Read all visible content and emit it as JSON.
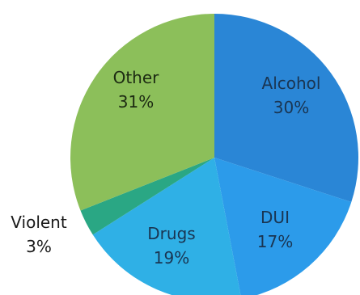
{
  "chart_data": {
    "type": "pie",
    "slices": [
      {
        "label": "Alcohol",
        "value": 30,
        "value_text": "30%",
        "color": "#2a86d6",
        "label_color": "#1a3552"
      },
      {
        "label": "DUI",
        "value": 17,
        "value_text": "17%",
        "color": "#2c9bea",
        "label_color": "#1a3552"
      },
      {
        "label": "Drugs",
        "value": 19,
        "value_text": "19%",
        "color": "#2fb0e6",
        "label_color": "#1a3552"
      },
      {
        "label": "Violent",
        "value": 3,
        "value_text": "3%",
        "color": "#2aa784",
        "label_color": "#1a1a1a"
      },
      {
        "label": "Other",
        "value": 31,
        "value_text": "31%",
        "color": "#8cbf5a",
        "label_color": "#1c2a12"
      }
    ],
    "start_angle_deg": 0,
    "direction": "clockwise"
  }
}
